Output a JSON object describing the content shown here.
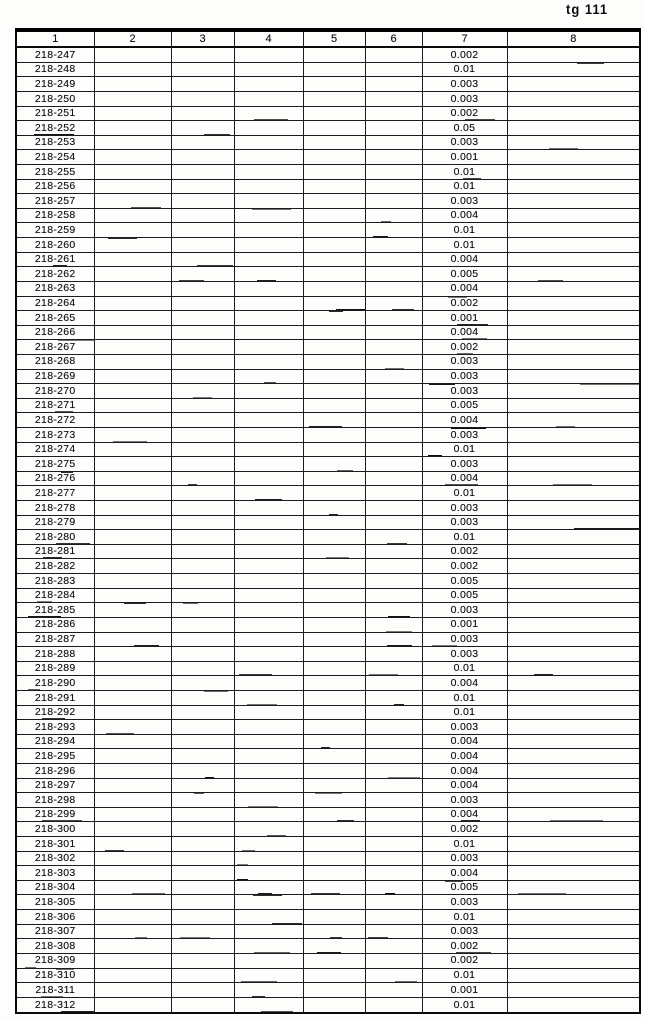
{
  "page": {
    "corner_label": "tg 111"
  },
  "table": {
    "columns": [
      "1",
      "2",
      "3",
      "4",
      "5",
      "6",
      "7",
      "8"
    ],
    "id_column": "1",
    "value_column": "7",
    "rows": [
      {
        "id": "218-247",
        "value": "0.002"
      },
      {
        "id": "218-248",
        "value": "0.01"
      },
      {
        "id": "218-249",
        "value": "0.003"
      },
      {
        "id": "218-250",
        "value": "0.003"
      },
      {
        "id": "218-251",
        "value": "0.002"
      },
      {
        "id": "218-252",
        "value": "0.05"
      },
      {
        "id": "218-253",
        "value": "0.003"
      },
      {
        "id": "218-254",
        "value": "0.001"
      },
      {
        "id": "218-255",
        "value": "0.01"
      },
      {
        "id": "218-256",
        "value": "0.01"
      },
      {
        "id": "218-257",
        "value": "0.003"
      },
      {
        "id": "218-258",
        "value": "0.004"
      },
      {
        "id": "218-259",
        "value": "0.01"
      },
      {
        "id": "218-260",
        "value": "0.01"
      },
      {
        "id": "218-261",
        "value": "0.004"
      },
      {
        "id": "218-262",
        "value": "0.005"
      },
      {
        "id": "218-263",
        "value": "0.004"
      },
      {
        "id": "218-264",
        "value": "0.002"
      },
      {
        "id": "218-265",
        "value": "0.001"
      },
      {
        "id": "218-266",
        "value": "0.004"
      },
      {
        "id": "218-267",
        "value": "0.002"
      },
      {
        "id": "218-268",
        "value": "0.003"
      },
      {
        "id": "218-269",
        "value": "0.003"
      },
      {
        "id": "218-270",
        "value": "0.003"
      },
      {
        "id": "218-271",
        "value": "0.005"
      },
      {
        "id": "218-272",
        "value": "0.004"
      },
      {
        "id": "218-273",
        "value": "0.003"
      },
      {
        "id": "218-274",
        "value": "0.01"
      },
      {
        "id": "218-275",
        "value": "0.003"
      },
      {
        "id": "218-276",
        "value": "0.004"
      },
      {
        "id": "218-277",
        "value": "0.01"
      },
      {
        "id": "218-278",
        "value": "0.003"
      },
      {
        "id": "218-279",
        "value": "0.003"
      },
      {
        "id": "218-280",
        "value": "0.01"
      },
      {
        "id": "218-281",
        "value": "0.002"
      },
      {
        "id": "218-282",
        "value": "0.002"
      },
      {
        "id": "218-283",
        "value": "0.005"
      },
      {
        "id": "218-284",
        "value": "0.005"
      },
      {
        "id": "218-285",
        "value": "0.003"
      },
      {
        "id": "218-286",
        "value": "0.001"
      },
      {
        "id": "218-287",
        "value": "0.003"
      },
      {
        "id": "218-288",
        "value": "0.003"
      },
      {
        "id": "218-289",
        "value": "0.01"
      },
      {
        "id": "218-290",
        "value": "0.004"
      },
      {
        "id": "218-291",
        "value": "0.01"
      },
      {
        "id": "218-292",
        "value": "0.01"
      },
      {
        "id": "218-293",
        "value": "0.003"
      },
      {
        "id": "218-294",
        "value": "0.004"
      },
      {
        "id": "218-295",
        "value": "0.004"
      },
      {
        "id": "218-296",
        "value": "0.004"
      },
      {
        "id": "218-297",
        "value": "0.004"
      },
      {
        "id": "218-298",
        "value": "0.003"
      },
      {
        "id": "218-299",
        "value": "0.004"
      },
      {
        "id": "218-300",
        "value": "0.002"
      },
      {
        "id": "218-301",
        "value": "0.01"
      },
      {
        "id": "218-302",
        "value": "0.003"
      },
      {
        "id": "218-303",
        "value": "0.004"
      },
      {
        "id": "218-304",
        "value": "0.005"
      },
      {
        "id": "218-305",
        "value": "0.003"
      },
      {
        "id": "218-306",
        "value": "0.01"
      },
      {
        "id": "218-307",
        "value": "0.003"
      },
      {
        "id": "218-308",
        "value": "0.002"
      },
      {
        "id": "218-309",
        "value": "0.002"
      },
      {
        "id": "218-310",
        "value": "0.01"
      },
      {
        "id": "218-311",
        "value": "0.001"
      },
      {
        "id": "218-312",
        "value": "0.01"
      }
    ]
  }
}
